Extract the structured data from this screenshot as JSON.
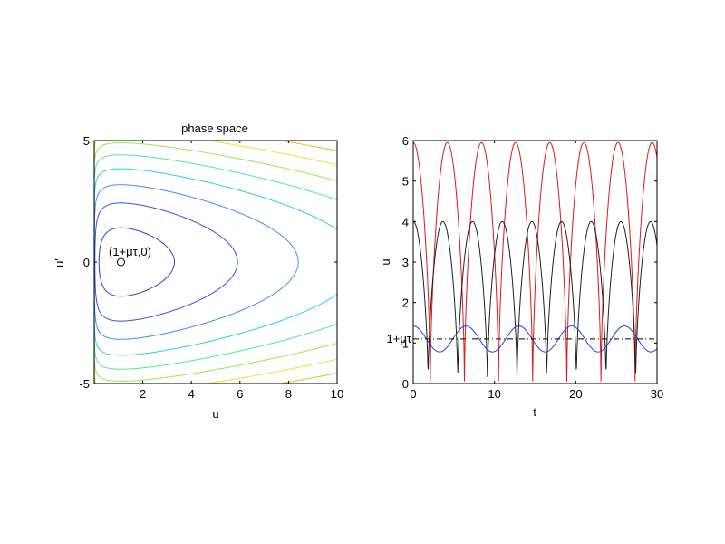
{
  "figure_background": "#ffffff",
  "chart_data": [
    {
      "type": "contour",
      "title": "phase space",
      "xlabel": "u",
      "ylabel": "u'",
      "xlim": [
        0,
        10
      ],
      "ylim": [
        -5,
        5
      ],
      "xticks": [
        "2",
        "4",
        "6",
        "8",
        "10"
      ],
      "yticks": [
        "-5",
        "0",
        "5"
      ],
      "grid": false,
      "annotation": {
        "text": "(1+μτ,0)",
        "x": 1.1,
        "y": 0
      },
      "equilibrium_point": {
        "x": 1.1,
        "y": 0
      },
      "contours": [
        {
          "u_right": 3.3,
          "color": "#2a3fd6"
        },
        {
          "u_right": 5.9,
          "color": "#2f55e0"
        },
        {
          "u_right": 8.4,
          "color": "#3d8ff0"
        },
        {
          "u_right": 11.0,
          "color": "#22d2e6"
        },
        {
          "u_right": 13.6,
          "color": "#50e6a0"
        },
        {
          "u_right": 16.1,
          "color": "#9be64a"
        },
        {
          "u_right": 18.7,
          "color": "#e6e628"
        },
        {
          "u_right": 21.3,
          "color": "#f2b430"
        },
        {
          "u_right": 23.8,
          "color": "#f06e3c"
        },
        {
          "u_right": 26.4,
          "color": "#e03a30"
        },
        {
          "u_right": 29.0,
          "color": "#b01e1e"
        },
        {
          "u_right": 31.6,
          "color": "#6a1a1a"
        }
      ]
    },
    {
      "type": "line",
      "xlabel": "t",
      "ylabel": "u",
      "xlim": [
        0,
        30
      ],
      "ylim": [
        0,
        6
      ],
      "xticks": [
        "0",
        "10",
        "20",
        "30"
      ],
      "yticks": [
        "0",
        "1",
        "2",
        "3",
        "4",
        "5",
        "6"
      ],
      "grid": false,
      "reference_line": {
        "y": 1.1,
        "label": "1+μτ",
        "style": "dash-dot",
        "color": "#000000"
      },
      "series": [
        {
          "amplitude_max": 5.95,
          "period": 8.4,
          "color": "#e01818"
        },
        {
          "amplitude_max": 4.0,
          "period": 7.3,
          "color": "#202020"
        },
        {
          "amplitude_max": 1.42,
          "period": 6.5,
          "color": "#1f3fe0"
        }
      ]
    }
  ]
}
